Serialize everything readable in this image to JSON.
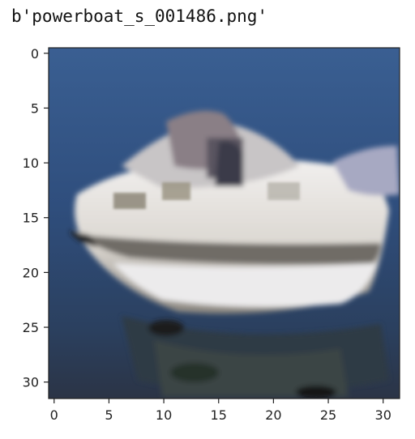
{
  "title": "b'powerboat_s_001486.png'",
  "image": {
    "subject": "powerboat",
    "grid": [
      32,
      32
    ],
    "colors": {
      "water_top": "#3a5d8e",
      "water_mid": "#2f4c79",
      "water_bottom": "#2d3b52",
      "hull_white": "#e9e7e4",
      "hull_shadow": "#8f8a84",
      "dark_trim": "#2b2a2e",
      "wake": "#3c4648"
    }
  },
  "axes": {
    "x_ticks": [
      "0",
      "5",
      "10",
      "15",
      "20",
      "25",
      "30"
    ],
    "y_ticks": [
      "0",
      "5",
      "10",
      "15",
      "20",
      "25",
      "30"
    ]
  }
}
